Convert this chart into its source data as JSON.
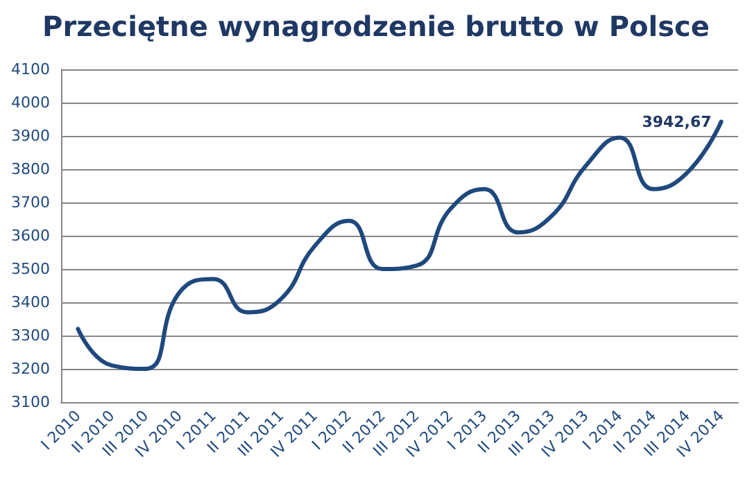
{
  "chart_data": {
    "type": "line",
    "title": "Przeciętne wynagrodzenie brutto w Polsce",
    "categories": [
      "I 2010",
      "II 2010",
      "III 2010",
      "IV 2010",
      "I 2011",
      "II 2011",
      "III 2011",
      "IV 2011",
      "I 2012",
      "II 2012",
      "III 2012",
      "IV 2012",
      "I 2013",
      "II 2013",
      "III 2013",
      "IV 2013",
      "I 2014",
      "II 2014",
      "III 2014",
      "IV 2014"
    ],
    "series": [
      {
        "color": "#1f497d",
        "values": [
          3320,
          3210,
          3200,
          3430,
          3470,
          3370,
          3410,
          3570,
          3645,
          3500,
          3510,
          3680,
          3740,
          3610,
          3660,
          3810,
          3895,
          3740,
          3790,
          3942.67
        ],
        "value_labels": [
          null,
          null,
          null,
          null,
          null,
          null,
          null,
          null,
          null,
          null,
          null,
          null,
          null,
          null,
          null,
          null,
          null,
          null,
          null,
          "3942,67"
        ]
      }
    ],
    "ylim": [
      3100,
      4100
    ],
    "yticks": [
      3100,
      3200,
      3300,
      3400,
      3500,
      3600,
      3700,
      3800,
      3900,
      4000,
      4100
    ],
    "grid": "y",
    "marker": "none",
    "line_style": "solid"
  }
}
